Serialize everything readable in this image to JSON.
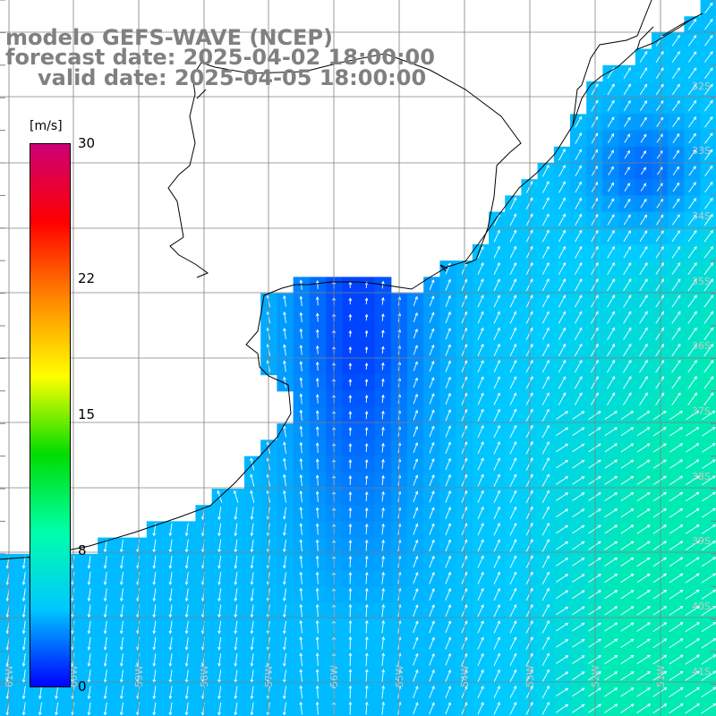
{
  "title": {
    "line1": "modelo GEFS-WAVE (NCEP)",
    "line2": "forecast date: 2025-04-02 18:00:00",
    "line3": "valid date: 2025-04-05 18:00:00"
  },
  "colorbar": {
    "unit": "[m/s]",
    "ticks": [
      "30",
      "22",
      "15",
      "8",
      "0"
    ],
    "tick_values": [
      30,
      22,
      15,
      8,
      0
    ],
    "colors": [
      "#0000ff",
      "#00c8ff",
      "#00ffaa",
      "#00dd00",
      "#ffff00",
      "#ff8800",
      "#ff0000",
      "#cc0077"
    ]
  },
  "map": {
    "region": "Uruguay / Rio de la Plata / southern Brazil coast",
    "lat_labels": [
      "32S",
      "33S",
      "34S",
      "35S",
      "36S",
      "37S",
      "38S",
      "39S",
      "40S",
      "41S"
    ],
    "lon_labels": [
      "61W",
      "60W",
      "59W",
      "58W",
      "57W",
      "56W",
      "55W",
      "54W",
      "53W",
      "52W",
      "51W"
    ],
    "colors": {
      "land": "#ffffff",
      "coast": "#000000",
      "grid": "#808080",
      "arrow": "#ffffff"
    }
  }
}
